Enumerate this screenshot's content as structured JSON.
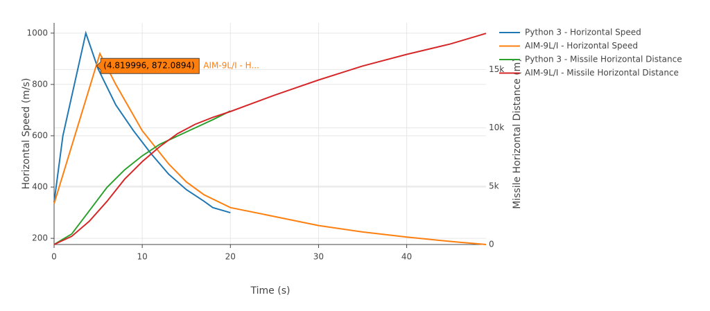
{
  "chart_data": {
    "type": "line",
    "xlabel": "Time (s)",
    "ylabel": "Horizontal Speed (m/s)",
    "y2label": "Missile Horizontal Distance (m)",
    "xlim": [
      0,
      49
    ],
    "xticks": [
      0,
      10,
      20,
      30,
      40
    ],
    "ylim": [
      176,
      1040
    ],
    "yticks": [
      200,
      400,
      600,
      800,
      1000
    ],
    "y2lim": [
      0,
      19000
    ],
    "y2ticks": [
      0,
      {
        "value": 5000,
        "label": "5k"
      },
      {
        "value": 10000,
        "label": "10k"
      },
      {
        "value": 15000,
        "label": "15k"
      }
    ],
    "grid": true,
    "legend": "right",
    "series": [
      {
        "name": "Python 3 - Horizontal Speed",
        "color": "#1f77b4",
        "x": [
          0,
          1,
          3.6,
          5,
          7,
          9,
          11,
          13,
          15,
          17,
          18,
          20
        ],
        "values": [
          340,
          600,
          1000,
          860,
          720,
          620,
          530,
          450,
          390,
          345,
          320,
          300
        ]
      },
      {
        "name": "AIM-9L/I - Horizontal Speed",
        "color": "#ff7f0e",
        "x": [
          0,
          5.2,
          7,
          10,
          13,
          15,
          17,
          20,
          25,
          30,
          35,
          40,
          45,
          49
        ],
        "values": [
          335,
          920,
          800,
          620,
          490,
          420,
          370,
          320,
          285,
          250,
          225,
          205,
          188,
          176
        ]
      },
      {
        "name": "Python 3 - Missile Horizontal Distance",
        "color": "#2ca02c",
        "axis": "y2",
        "x": [
          0,
          2,
          4,
          6,
          8,
          10,
          12,
          14,
          16,
          18,
          20
        ],
        "values": [
          0,
          900,
          2900,
          4900,
          6400,
          7600,
          8600,
          9300,
          10000,
          10700,
          11450
        ]
      },
      {
        "name": "AIM-9L/I - Missile Horizontal Distance",
        "color": "#d62728",
        "axis": "y2",
        "x": [
          0,
          2,
          4,
          6,
          8,
          10,
          12,
          14,
          16,
          18,
          20,
          25,
          30,
          35,
          40,
          45,
          49
        ],
        "values": [
          0,
          700,
          2000,
          3700,
          5600,
          7100,
          8400,
          9500,
          10300,
          10900,
          11400,
          12800,
          14100,
          15300,
          16300,
          17200,
          18100
        ]
      }
    ],
    "hover": {
      "x": 4.819996,
      "y": 872.0894,
      "label": "(4.819996, 872.0894)",
      "name": "AIM-9L/I - H...",
      "color": "#ff7f0e"
    }
  }
}
